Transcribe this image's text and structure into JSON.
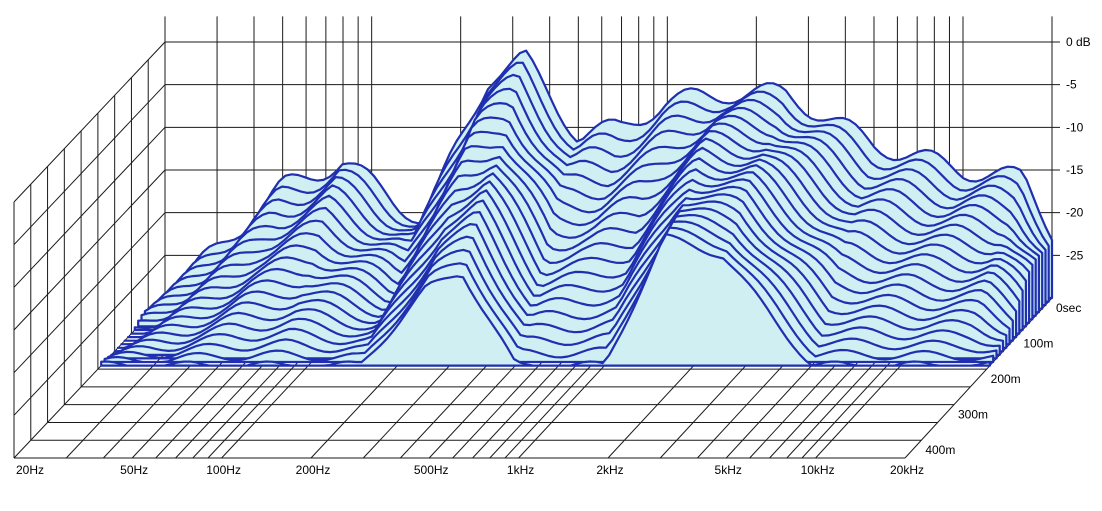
{
  "chart_data": {
    "type": "area",
    "subtype": "waterfall-3d",
    "title": "",
    "xlabel": "",
    "ylabel": "",
    "zlabel": "",
    "x_scale": "log",
    "x_ticks": [
      {
        "value": 20,
        "label": "20Hz"
      },
      {
        "value": 50,
        "label": "50Hz"
      },
      {
        "value": 100,
        "label": "100Hz"
      },
      {
        "value": 200,
        "label": "200Hz"
      },
      {
        "value": 500,
        "label": "500Hz"
      },
      {
        "value": 1000,
        "label": "1kHz"
      },
      {
        "value": 2000,
        "label": "2kHz"
      },
      {
        "value": 5000,
        "label": "5kHz"
      },
      {
        "value": 10000,
        "label": "10kHz"
      },
      {
        "value": 20000,
        "label": "20kHz"
      }
    ],
    "y_ticks": [
      {
        "value": 0,
        "label": "0 dB"
      },
      {
        "value": -5,
        "label": "-5"
      },
      {
        "value": -10,
        "label": "-10"
      },
      {
        "value": -15,
        "label": "-15"
      },
      {
        "value": -20,
        "label": "-20"
      },
      {
        "value": -25,
        "label": "-25"
      }
    ],
    "z_ticks": [
      {
        "value": 0,
        "label": "0sec"
      },
      {
        "value": 100,
        "label": "100m"
      },
      {
        "value": 200,
        "label": "200m"
      },
      {
        "value": 300,
        "label": "300m"
      },
      {
        "value": 400,
        "label": "400m"
      }
    ],
    "xlim": [
      20,
      20000
    ],
    "ylim": [
      -30,
      0
    ],
    "zlim": [
      0,
      450
    ],
    "grid": true,
    "slice_count": 20,
    "slice_spacing_ms": 10,
    "series": [
      {
        "x": [
          20,
          50,
          80,
          150,
          250,
          330,
          500,
          700,
          1000,
          1600,
          2500,
          5000,
          10000,
          16000,
          20000
        ],
        "values": [
          -30,
          -17,
          -14,
          -21,
          -4,
          -2,
          -11,
          -10,
          -7,
          -6,
          -6,
          -12,
          -15,
          -16,
          -22
        ]
      },
      {
        "x": [
          20,
          50,
          80,
          150,
          250,
          330,
          500,
          700,
          1000,
          1600,
          2500,
          5000,
          10000,
          16000,
          20000
        ],
        "values": [
          -30,
          -30,
          -30,
          -30,
          -21,
          -19,
          -30,
          -30,
          -30,
          -15,
          -17,
          -30,
          -30,
          -30,
          -30
        ]
      }
    ],
    "colors": {
      "line": "#1f2fb0",
      "fill": "#cfeff2",
      "grid": "#1a1a1a"
    }
  }
}
